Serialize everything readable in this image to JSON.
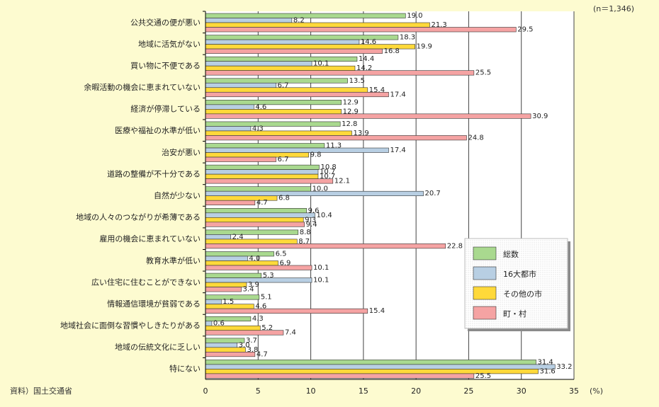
{
  "chart_data": {
    "type": "bar",
    "orientation": "horizontal",
    "note": "(n＝1,346)",
    "source": "資料）国土交通省",
    "x_unit": "(%)",
    "xlim": [
      0,
      35
    ],
    "x_ticks": [
      "0",
      "5",
      "10",
      "15",
      "20",
      "25",
      "30",
      "35"
    ],
    "x_tick_values": [
      0,
      5,
      10,
      15,
      20,
      25,
      30,
      35
    ],
    "grid": true,
    "legend_position": "right",
    "categories": [
      "公共交通の便が悪い",
      "地域に活気がない",
      "買い物に不便である",
      "余暇活動の機会に恵まれていない",
      "経済が停滞している",
      "医療や福祉の水準が低い",
      "治安が悪い",
      "道路の整備が不十分である",
      "自然が少ない",
      "地域の人々のつながりが希薄である",
      "雇用の機会に恵まれていない",
      "教育水準が低い",
      "広い住宅に住むことができない",
      "情報通信環境が貧弱である",
      "地域社会に面倒な習慣やしきたりがある",
      "地域の伝統文化に乏しい",
      "特にない"
    ],
    "series": [
      {
        "name": "総数",
        "color": "#a9d98f",
        "values": [
          19.0,
          18.3,
          14.4,
          13.5,
          12.9,
          12.8,
          11.3,
          10.8,
          10.0,
          9.6,
          8.8,
          6.5,
          5.3,
          5.1,
          4.3,
          3.7,
          31.4
        ]
      },
      {
        "name": "16大都市",
        "color": "#b8cfe3",
        "values": [
          8.2,
          14.6,
          10.1,
          6.7,
          4.6,
          4.3,
          17.4,
          10.7,
          20.7,
          10.4,
          2.4,
          4.0,
          10.1,
          1.5,
          0.6,
          3.0,
          33.2
        ]
      },
      {
        "name": "その他の市",
        "color": "#ffd93a",
        "values": [
          21.3,
          19.9,
          14.2,
          15.4,
          12.9,
          13.9,
          9.8,
          10.7,
          6.8,
          9.3,
          8.7,
          6.9,
          3.9,
          4.6,
          5.2,
          3.8,
          31.6
        ]
      },
      {
        "name": "町・村",
        "color": "#f5a3a3",
        "values": [
          29.5,
          16.8,
          25.5,
          17.4,
          30.9,
          24.8,
          6.7,
          12.1,
          4.7,
          9.4,
          22.8,
          10.1,
          3.4,
          15.4,
          7.4,
          4.7,
          25.5
        ]
      }
    ]
  }
}
